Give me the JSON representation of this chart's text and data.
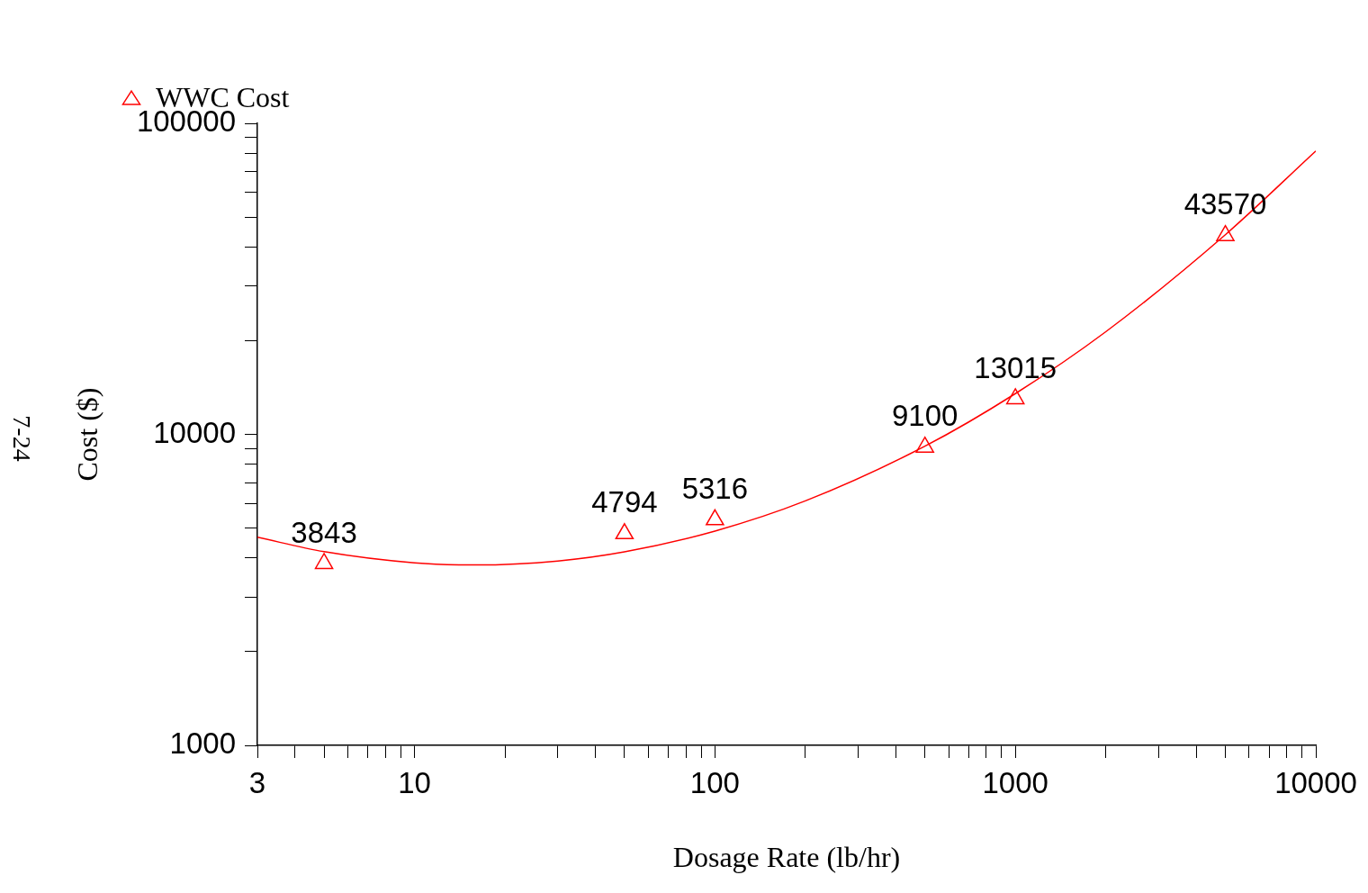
{
  "chart_data": {
    "type": "scatter",
    "xlabel": "Dosage Rate (lb/hr)",
    "ylabel": "Cost ($)",
    "annotations": [
      "7-24"
    ],
    "log": "xy",
    "grid": false,
    "legend": "top left",
    "xlim": [
      3,
      10000
    ],
    "ylim": [
      1000,
      100000
    ],
    "xticks": [
      3,
      {
        "value": 4,
        "label": null
      },
      {
        "value": 5,
        "label": null
      },
      {
        "value": 6,
        "label": null
      },
      {
        "value": 7,
        "label": null
      },
      {
        "value": 8,
        "label": null
      },
      {
        "value": 9,
        "label": null
      },
      10,
      {
        "value": 20,
        "label": null
      },
      {
        "value": 30,
        "label": null
      },
      {
        "value": 40,
        "label": null
      },
      {
        "value": 50,
        "label": null
      },
      {
        "value": 60,
        "label": null
      },
      {
        "value": 70,
        "label": null
      },
      {
        "value": 80,
        "label": null
      },
      {
        "value": 90,
        "label": null
      },
      100,
      {
        "value": 200,
        "label": null
      },
      {
        "value": 300,
        "label": null
      },
      {
        "value": 400,
        "label": null
      },
      {
        "value": 500,
        "label": null
      },
      {
        "value": 600,
        "label": null
      },
      {
        "value": 700,
        "label": null
      },
      {
        "value": 800,
        "label": null
      },
      {
        "value": 900,
        "label": null
      },
      1000,
      {
        "value": 2000,
        "label": null
      },
      {
        "value": 3000,
        "label": null
      },
      {
        "value": 4000,
        "label": null
      },
      {
        "value": 5000,
        "label": null
      },
      {
        "value": 6000,
        "label": null
      },
      {
        "value": 7000,
        "label": null
      },
      {
        "value": 8000,
        "label": null
      },
      {
        "value": 9000,
        "label": null
      },
      10000
    ],
    "yticks": [
      1000,
      {
        "value": 2000,
        "label": null
      },
      {
        "value": 3000,
        "label": null
      },
      {
        "value": 4000,
        "label": null
      },
      {
        "value": 5000,
        "label": null
      },
      {
        "value": 6000,
        "label": null
      },
      {
        "value": 7000,
        "label": null
      },
      {
        "value": 8000,
        "label": null
      },
      {
        "value": 9000,
        "label": null
      },
      10000,
      {
        "value": 20000,
        "label": null
      },
      {
        "value": 30000,
        "label": null
      },
      {
        "value": 40000,
        "label": null
      },
      {
        "value": 50000,
        "label": null
      },
      {
        "value": 60000,
        "label": null
      },
      {
        "value": 70000,
        "label": null
      },
      {
        "value": 80000,
        "label": null
      },
      {
        "value": 90000,
        "label": null
      },
      100000
    ],
    "series": [
      {
        "name": "WWC Cost",
        "color": "#ff0000",
        "marker": "triangle",
        "x": [
          5,
          50,
          100,
          500,
          1000,
          5000
        ],
        "values": [
          3843,
          4794,
          5316,
          9100,
          13015,
          43570
        ],
        "value_labels": [
          "3843",
          "4794",
          "5316",
          "9100",
          "13015",
          "43570"
        ]
      },
      {
        "type": "line",
        "color": "#ff0000",
        "marker": "none",
        "line_style": "solid",
        "x": [
          3,
          5,
          10,
          16,
          30,
          50,
          100,
          200,
          500,
          1000,
          2000,
          5000,
          10000
        ],
        "values": [
          4670,
          4195,
          3863,
          3802,
          3917,
          4191,
          4887,
          6110,
          9160,
          13520,
          21380,
          43850,
          81470
        ]
      }
    ]
  }
}
